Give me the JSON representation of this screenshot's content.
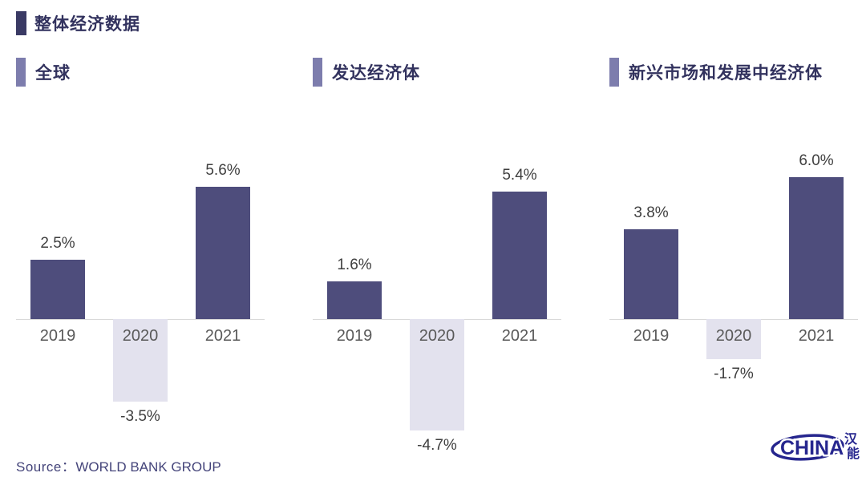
{
  "header": {
    "title": "整体经济数据"
  },
  "colors": {
    "positive_bar": "#4e4d7c",
    "negative_bar": "#e3e2ee",
    "title_marker": "#3a3a64",
    "section_marker": "#7d7dad",
    "axis_line": "#d9d9d9",
    "logo_navy": "#26268e"
  },
  "chart_data": [
    {
      "type": "bar",
      "title": "全球",
      "categories": [
        "2019",
        "2020",
        "2021"
      ],
      "values": [
        2.5,
        -3.5,
        5.6
      ],
      "labels": [
        "2.5%",
        "-3.5%",
        "5.6%"
      ],
      "ylim": [
        -5.5,
        7
      ],
      "xlabel": "",
      "ylabel": "",
      "grid": false,
      "legend": "none"
    },
    {
      "type": "bar",
      "title": "发达经济体",
      "categories": [
        "2019",
        "2020",
        "2021"
      ],
      "values": [
        1.6,
        -4.7,
        5.4
      ],
      "labels": [
        "1.6%",
        "-4.7%",
        "5.4%"
      ],
      "ylim": [
        -5.5,
        7
      ],
      "xlabel": "",
      "ylabel": "",
      "grid": false,
      "legend": "none"
    },
    {
      "type": "bar",
      "title": "新兴市场和发展中经济体",
      "categories": [
        "2019",
        "2020",
        "2021"
      ],
      "values": [
        3.8,
        -1.7,
        6.0
      ],
      "labels": [
        "3.8%",
        "-1.7%",
        "6.0%"
      ],
      "ylim": [
        -5.5,
        7
      ],
      "xlabel": "",
      "ylabel": "",
      "grid": false,
      "legend": "none"
    }
  ],
  "footer": {
    "source_label": "Source：",
    "source_value": "WORLD BANK GROUP"
  },
  "logo": {
    "text": "CHINA",
    "cn_top": "汉",
    "cn_bottom": "能"
  }
}
